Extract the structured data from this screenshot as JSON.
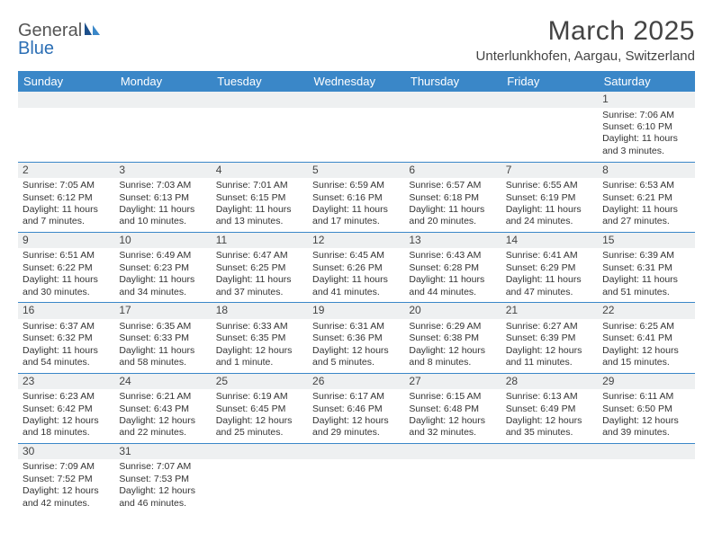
{
  "logo": {
    "word1": "General",
    "word2": "Blue"
  },
  "title": "March 2025",
  "location": "Unterlunkhofen, Aargau, Switzerland",
  "colors": {
    "header_bg": "#3a87c8",
    "header_fg": "#ffffff",
    "daynum_bg": "#eef0f1",
    "border": "#3a87c8",
    "logo_gray": "#555555",
    "logo_blue": "#2c6fb5"
  },
  "weekdays": [
    "Sunday",
    "Monday",
    "Tuesday",
    "Wednesday",
    "Thursday",
    "Friday",
    "Saturday"
  ],
  "weeks": [
    [
      null,
      null,
      null,
      null,
      null,
      null,
      {
        "n": "1",
        "sr": "Sunrise: 7:06 AM",
        "ss": "Sunset: 6:10 PM",
        "dl1": "Daylight: 11 hours",
        "dl2": "and 3 minutes."
      }
    ],
    [
      {
        "n": "2",
        "sr": "Sunrise: 7:05 AM",
        "ss": "Sunset: 6:12 PM",
        "dl1": "Daylight: 11 hours",
        "dl2": "and 7 minutes."
      },
      {
        "n": "3",
        "sr": "Sunrise: 7:03 AM",
        "ss": "Sunset: 6:13 PM",
        "dl1": "Daylight: 11 hours",
        "dl2": "and 10 minutes."
      },
      {
        "n": "4",
        "sr": "Sunrise: 7:01 AM",
        "ss": "Sunset: 6:15 PM",
        "dl1": "Daylight: 11 hours",
        "dl2": "and 13 minutes."
      },
      {
        "n": "5",
        "sr": "Sunrise: 6:59 AM",
        "ss": "Sunset: 6:16 PM",
        "dl1": "Daylight: 11 hours",
        "dl2": "and 17 minutes."
      },
      {
        "n": "6",
        "sr": "Sunrise: 6:57 AM",
        "ss": "Sunset: 6:18 PM",
        "dl1": "Daylight: 11 hours",
        "dl2": "and 20 minutes."
      },
      {
        "n": "7",
        "sr": "Sunrise: 6:55 AM",
        "ss": "Sunset: 6:19 PM",
        "dl1": "Daylight: 11 hours",
        "dl2": "and 24 minutes."
      },
      {
        "n": "8",
        "sr": "Sunrise: 6:53 AM",
        "ss": "Sunset: 6:21 PM",
        "dl1": "Daylight: 11 hours",
        "dl2": "and 27 minutes."
      }
    ],
    [
      {
        "n": "9",
        "sr": "Sunrise: 6:51 AM",
        "ss": "Sunset: 6:22 PM",
        "dl1": "Daylight: 11 hours",
        "dl2": "and 30 minutes."
      },
      {
        "n": "10",
        "sr": "Sunrise: 6:49 AM",
        "ss": "Sunset: 6:23 PM",
        "dl1": "Daylight: 11 hours",
        "dl2": "and 34 minutes."
      },
      {
        "n": "11",
        "sr": "Sunrise: 6:47 AM",
        "ss": "Sunset: 6:25 PM",
        "dl1": "Daylight: 11 hours",
        "dl2": "and 37 minutes."
      },
      {
        "n": "12",
        "sr": "Sunrise: 6:45 AM",
        "ss": "Sunset: 6:26 PM",
        "dl1": "Daylight: 11 hours",
        "dl2": "and 41 minutes."
      },
      {
        "n": "13",
        "sr": "Sunrise: 6:43 AM",
        "ss": "Sunset: 6:28 PM",
        "dl1": "Daylight: 11 hours",
        "dl2": "and 44 minutes."
      },
      {
        "n": "14",
        "sr": "Sunrise: 6:41 AM",
        "ss": "Sunset: 6:29 PM",
        "dl1": "Daylight: 11 hours",
        "dl2": "and 47 minutes."
      },
      {
        "n": "15",
        "sr": "Sunrise: 6:39 AM",
        "ss": "Sunset: 6:31 PM",
        "dl1": "Daylight: 11 hours",
        "dl2": "and 51 minutes."
      }
    ],
    [
      {
        "n": "16",
        "sr": "Sunrise: 6:37 AM",
        "ss": "Sunset: 6:32 PM",
        "dl1": "Daylight: 11 hours",
        "dl2": "and 54 minutes."
      },
      {
        "n": "17",
        "sr": "Sunrise: 6:35 AM",
        "ss": "Sunset: 6:33 PM",
        "dl1": "Daylight: 11 hours",
        "dl2": "and 58 minutes."
      },
      {
        "n": "18",
        "sr": "Sunrise: 6:33 AM",
        "ss": "Sunset: 6:35 PM",
        "dl1": "Daylight: 12 hours",
        "dl2": "and 1 minute."
      },
      {
        "n": "19",
        "sr": "Sunrise: 6:31 AM",
        "ss": "Sunset: 6:36 PM",
        "dl1": "Daylight: 12 hours",
        "dl2": "and 5 minutes."
      },
      {
        "n": "20",
        "sr": "Sunrise: 6:29 AM",
        "ss": "Sunset: 6:38 PM",
        "dl1": "Daylight: 12 hours",
        "dl2": "and 8 minutes."
      },
      {
        "n": "21",
        "sr": "Sunrise: 6:27 AM",
        "ss": "Sunset: 6:39 PM",
        "dl1": "Daylight: 12 hours",
        "dl2": "and 11 minutes."
      },
      {
        "n": "22",
        "sr": "Sunrise: 6:25 AM",
        "ss": "Sunset: 6:41 PM",
        "dl1": "Daylight: 12 hours",
        "dl2": "and 15 minutes."
      }
    ],
    [
      {
        "n": "23",
        "sr": "Sunrise: 6:23 AM",
        "ss": "Sunset: 6:42 PM",
        "dl1": "Daylight: 12 hours",
        "dl2": "and 18 minutes."
      },
      {
        "n": "24",
        "sr": "Sunrise: 6:21 AM",
        "ss": "Sunset: 6:43 PM",
        "dl1": "Daylight: 12 hours",
        "dl2": "and 22 minutes."
      },
      {
        "n": "25",
        "sr": "Sunrise: 6:19 AM",
        "ss": "Sunset: 6:45 PM",
        "dl1": "Daylight: 12 hours",
        "dl2": "and 25 minutes."
      },
      {
        "n": "26",
        "sr": "Sunrise: 6:17 AM",
        "ss": "Sunset: 6:46 PM",
        "dl1": "Daylight: 12 hours",
        "dl2": "and 29 minutes."
      },
      {
        "n": "27",
        "sr": "Sunrise: 6:15 AM",
        "ss": "Sunset: 6:48 PM",
        "dl1": "Daylight: 12 hours",
        "dl2": "and 32 minutes."
      },
      {
        "n": "28",
        "sr": "Sunrise: 6:13 AM",
        "ss": "Sunset: 6:49 PM",
        "dl1": "Daylight: 12 hours",
        "dl2": "and 35 minutes."
      },
      {
        "n": "29",
        "sr": "Sunrise: 6:11 AM",
        "ss": "Sunset: 6:50 PM",
        "dl1": "Daylight: 12 hours",
        "dl2": "and 39 minutes."
      }
    ],
    [
      {
        "n": "30",
        "sr": "Sunrise: 7:09 AM",
        "ss": "Sunset: 7:52 PM",
        "dl1": "Daylight: 12 hours",
        "dl2": "and 42 minutes."
      },
      {
        "n": "31",
        "sr": "Sunrise: 7:07 AM",
        "ss": "Sunset: 7:53 PM",
        "dl1": "Daylight: 12 hours",
        "dl2": "and 46 minutes."
      },
      null,
      null,
      null,
      null,
      null
    ]
  ]
}
